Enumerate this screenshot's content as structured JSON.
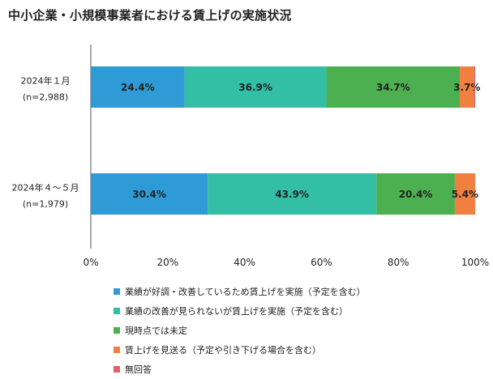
{
  "title": "中小企業・小規模事業者における賃上げの実施状況",
  "chart_data": {
    "type": "bar",
    "orientation": "horizontal",
    "stacked": true,
    "title": "中小企業・小規模事業者における賃上げの実施状況",
    "xlim": [
      0,
      100
    ],
    "x_ticks": [
      "0%",
      "20%",
      "40%",
      "60%",
      "80%",
      "100%"
    ],
    "categories": [
      {
        "label": "2024年１月",
        "n": "(n=2,988)"
      },
      {
        "label": "2024年４～５月",
        "n": "(n=1,979)"
      }
    ],
    "series": [
      {
        "name": "業績が好調・改善しているため賃上げを実施（予定を含む）",
        "color": "#2E9BD6",
        "values": [
          24.4,
          30.4
        ],
        "labels": [
          "24.4%",
          "30.4%"
        ]
      },
      {
        "name": "業績の改善が見られないが賃上げを実施（予定を含む）",
        "color": "#33BFA5",
        "values": [
          36.9,
          43.9
        ],
        "labels": [
          "36.9%",
          "43.9%"
        ]
      },
      {
        "name": "現時点では未定",
        "color": "#4CAF50",
        "values": [
          34.7,
          20.4
        ],
        "labels": [
          "34.7%",
          "20.4%"
        ]
      },
      {
        "name": "賃上げを見送る（予定や引き下げる場合を含む）",
        "color": "#F08040",
        "values": [
          3.7,
          5.4
        ],
        "labels": [
          "3.7%",
          "5.4%"
        ]
      },
      {
        "name": "無回答",
        "color": "#E06070",
        "values": [
          0.3,
          0.0
        ],
        "labels": [
          "",
          ""
        ]
      }
    ],
    "grid": false,
    "legend_position": "bottom"
  }
}
